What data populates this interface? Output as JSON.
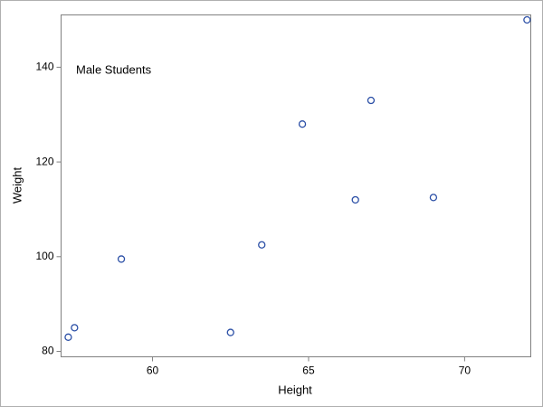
{
  "chart_data": {
    "type": "scatter",
    "annotation": "Male Students",
    "x_label": "Height",
    "y_label": "Weight",
    "x": [
      69,
      63.5,
      57.3,
      62.5,
      59,
      72,
      64.8,
      67,
      57.5,
      66.5
    ],
    "values": [
      112.5,
      102.5,
      83,
      84,
      99.5,
      150,
      128,
      133,
      85,
      112
    ],
    "color": "#2b4fa6",
    "xlim": [
      57.07,
      72.12
    ],
    "xticks": [
      60,
      65,
      70
    ],
    "ylim": [
      78.86,
      151.05
    ],
    "yticks": [
      80,
      100,
      120,
      140
    ],
    "grid": false
  }
}
